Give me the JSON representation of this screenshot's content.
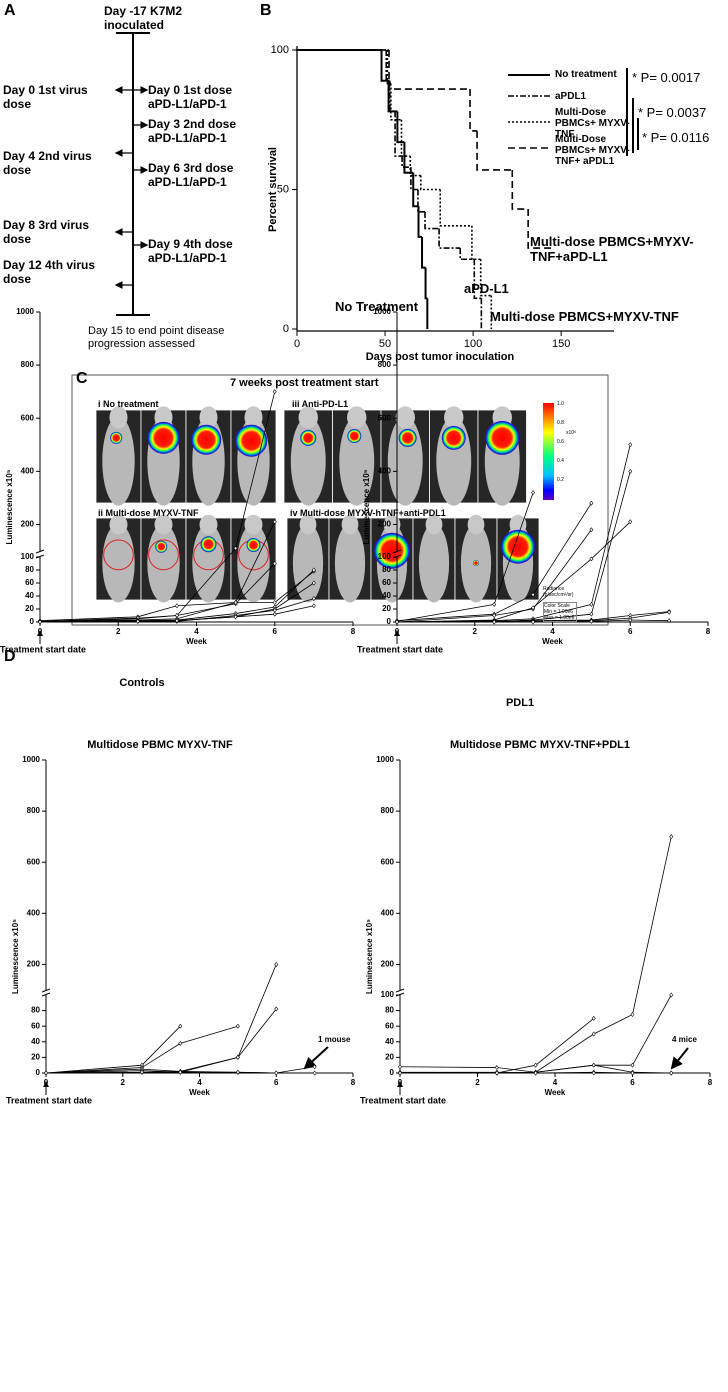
{
  "panel_A": {
    "label": "A",
    "top": "Day -17 K7M2 inoculated",
    "left": [
      "Day 0 1st virus dose",
      "Day 4 2nd virus dose",
      "Day 8 3rd virus dose",
      "Day 12 4th virus dose"
    ],
    "right": [
      "Day 0 1st dose aPD-L1/aPD-1",
      "Day 3 2nd dose aPD-L1/aPD-1",
      "Day 6 3rd dose aPD-L1/aPD-1",
      "Day 9 4th dose aPD-L1/aPD-1"
    ],
    "bottom": "Day 15 to end point disease progression assessed"
  },
  "panel_C": {
    "label": "C",
    "title": "7 weeks post treatment start",
    "groups": [
      "i No treatment",
      "iii Anti-PD-L1",
      "ii Multi-dose MYXV-TNF",
      "iv Multi-dose MYXV-hTNF+anti-PDL1"
    ],
    "colorbar_ticks": [
      "1.0",
      "0.8",
      "0.6",
      "0.4",
      "0.2"
    ],
    "colorbar_unit": "x10⁶",
    "colorbar_title": "Radiance (p/sec/cm²/sr)",
    "colorbar_scale": "Color Scale Min = 1.00e6 Max = 1.00e6"
  },
  "panel_D": {
    "label": "D"
  },
  "chart_data": [
    {
      "type": "step",
      "panel": "B",
      "ylabel": "Percent survival",
      "xlabel": "Days post tumor inoculation",
      "xlim": [
        0,
        180
      ],
      "ylim": [
        0,
        100
      ],
      "xticks": [
        0,
        50,
        100,
        150
      ],
      "yticks": [
        0,
        50,
        100
      ],
      "series": [
        {
          "name": "No treatment",
          "color": "#000000",
          "style": "solid",
          "x": [
            0,
            48,
            52,
            57,
            61,
            66,
            69,
            71,
            73,
            74
          ],
          "values": [
            100,
            89,
            78,
            67,
            56,
            44,
            33,
            22,
            11,
            0
          ]
        },
        {
          "name": "aPDL1",
          "color": "#000000",
          "style": "dashdot",
          "x": [
            0,
            50,
            52,
            55,
            59,
            64,
            68,
            72,
            80,
            92,
            100,
            104
          ],
          "values": [
            100,
            89,
            78,
            62,
            58,
            50,
            42,
            36,
            29,
            25,
            11,
            0
          ]
        },
        {
          "name": "Multi-Dose PBMCs+ MYXV-TNF",
          "color": "#000000",
          "style": "dotted",
          "x": [
            0,
            52,
            54,
            60,
            65,
            71,
            82,
            100,
            105,
            111
          ],
          "values": [
            100,
            88,
            75,
            62,
            55,
            50,
            37,
            25,
            12,
            0
          ]
        },
        {
          "name": "Multi-Dose PBMCs+ MYXV-TNF+ aPDL1",
          "color": "#000000",
          "style": "dashed",
          "x": [
            0,
            51,
            97,
            101,
            121,
            130,
            145
          ],
          "values": [
            100,
            86,
            71,
            57,
            43,
            29,
            29
          ]
        }
      ],
      "pvalues": [
        "* P= 0.0017",
        "* P= 0.0037",
        "* P= 0.0116"
      ],
      "curve_labels": [
        "Multi-dose PBMCS+MYXV-TNF+aPD-L1",
        "aPD-L1",
        "No Treatment",
        "Multi-dose PBMCS+MYXV-TNF"
      ]
    },
    {
      "type": "line",
      "title": "Controls",
      "xlabel": "Week",
      "ylabel": "Luminescence x10⁵",
      "note": "Treatment start date",
      "x": [
        0,
        2.5,
        3.5,
        5,
        6,
        7
      ],
      "xlim": [
        0,
        8
      ],
      "xticks": [
        0,
        2,
        4,
        6,
        8
      ],
      "ylim": [
        0,
        1000
      ],
      "ybreak": 100,
      "yticks": [
        0,
        20,
        40,
        60,
        80,
        100,
        200,
        400,
        600,
        800,
        1000
      ],
      "color": "#000000",
      "series": [
        {
          "values": [
            0,
            5,
            10,
            110,
            700,
            null
          ]
        },
        {
          "values": [
            2,
            8,
            25,
            30,
            210,
            null
          ]
        },
        {
          "values": [
            1,
            6,
            10,
            28,
            90,
            null
          ]
        },
        {
          "values": [
            1,
            3,
            5,
            30,
            30,
            78
          ]
        },
        {
          "values": [
            0,
            2,
            3,
            13,
            23,
            80
          ]
        },
        {
          "values": [
            0,
            1,
            2,
            8,
            20,
            60
          ]
        },
        {
          "values": [
            0,
            1,
            1,
            10,
            18,
            36
          ]
        },
        {
          "values": [
            0,
            1,
            2,
            8,
            12,
            25
          ]
        }
      ]
    },
    {
      "type": "line",
      "title": "PDL1",
      "xlabel": "Week",
      "ylabel": "Luminescence x10⁵",
      "note": "Treatment start date",
      "x": [
        0,
        2.5,
        3.5,
        5,
        6,
        7
      ],
      "xlim": [
        0,
        8
      ],
      "xticks": [
        0,
        2,
        4,
        6,
        8
      ],
      "ylim": [
        0,
        1000
      ],
      "ybreak": 100,
      "yticks": [
        0,
        20,
        40,
        60,
        80,
        100,
        200,
        400,
        600,
        800,
        1000
      ],
      "color": "#000000",
      "series": [
        {
          "values": [
            1,
            27,
            320,
            null,
            null,
            null
          ]
        },
        {
          "values": [
            2,
            12,
            42,
            280,
            null,
            null
          ]
        },
        {
          "values": [
            0,
            10,
            20,
            180,
            null,
            null
          ]
        },
        {
          "values": [
            0,
            3,
            22,
            97,
            210,
            null
          ]
        },
        {
          "values": [
            0,
            2,
            5,
            27,
            500,
            null
          ]
        },
        {
          "values": [
            0,
            1,
            3,
            12,
            400,
            null
          ]
        },
        {
          "values": [
            0,
            1,
            2,
            3,
            10,
            16
          ]
        },
        {
          "values": [
            0,
            0,
            1,
            2,
            6,
            15
          ]
        },
        {
          "values": [
            0,
            0,
            0,
            1,
            3,
            2
          ]
        }
      ]
    },
    {
      "type": "line",
      "title": "Multidose PBMC MYXV-TNF",
      "xlabel": "Week",
      "ylabel": "Luminescence x10⁵",
      "note": "Treatment start date",
      "annotation": "1 mouse",
      "x": [
        0,
        2.5,
        3.5,
        5,
        6,
        7
      ],
      "xlim": [
        0,
        8
      ],
      "xticks": [
        0,
        2,
        4,
        6,
        8
      ],
      "ylim": [
        0,
        1000
      ],
      "ybreak": 100,
      "yticks": [
        0,
        20,
        40,
        60,
        80,
        200,
        400,
        600,
        800,
        1000
      ],
      "color": "#000000",
      "series": [
        {
          "values": [
            0,
            10,
            60,
            null,
            null,
            null
          ]
        },
        {
          "values": [
            0,
            7,
            38,
            60,
            null,
            null
          ]
        },
        {
          "values": [
            0,
            5,
            2,
            20,
            200,
            null
          ]
        },
        {
          "values": [
            0,
            3,
            1,
            20,
            82,
            null
          ]
        },
        {
          "values": [
            0,
            1,
            2,
            1,
            0,
            8
          ]
        },
        {
          "values": [
            0,
            1,
            1,
            1,
            0,
            0
          ]
        }
      ]
    },
    {
      "type": "line",
      "title": "Multidose PBMC MYXV-TNF+PDL1",
      "xlabel": "Week",
      "ylabel": "Luminescence x10⁵",
      "note": "Treatment start date",
      "annotation": "4 mice",
      "x": [
        0,
        2.5,
        3.5,
        5,
        6,
        7
      ],
      "xlim": [
        0,
        8
      ],
      "xticks": [
        0,
        2,
        4,
        6,
        8
      ],
      "ylim": [
        0,
        1000
      ],
      "ybreak": 100,
      "yticks": [
        0,
        20,
        40,
        60,
        80,
        100,
        200,
        400,
        600,
        800,
        1000
      ],
      "color": "#000000",
      "series": [
        {
          "values": [
            0,
            0,
            10,
            70,
            null,
            null
          ]
        },
        {
          "values": [
            0,
            0,
            1,
            50,
            75,
            700
          ]
        },
        {
          "values": [
            0,
            0,
            1,
            10,
            10,
            100
          ]
        },
        {
          "values": [
            8,
            7,
            1,
            10,
            1,
            0
          ]
        },
        {
          "values": [
            1,
            1,
            0,
            1,
            0,
            0
          ]
        },
        {
          "values": [
            0,
            0,
            0,
            0,
            0,
            0
          ]
        }
      ]
    }
  ]
}
